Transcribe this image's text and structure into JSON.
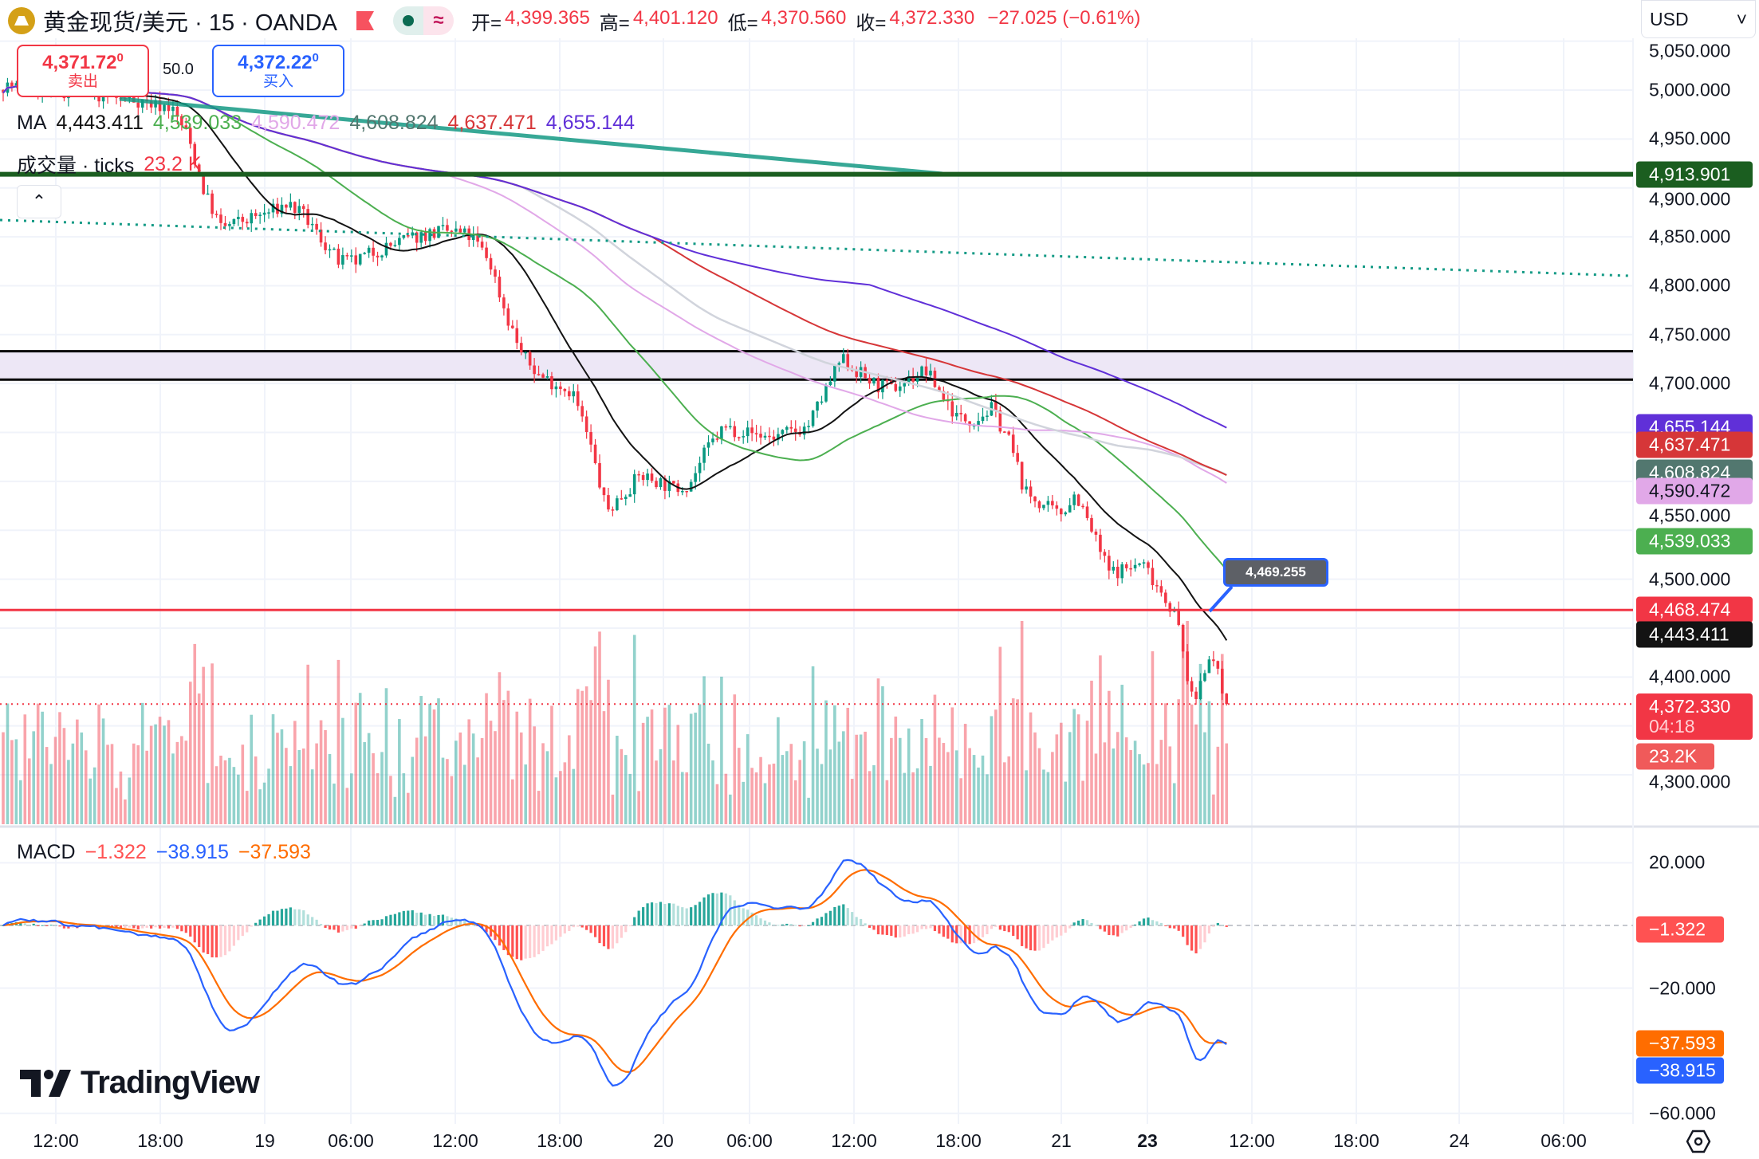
{
  "header": {
    "title": "黄金现货/美元 · 15 · OANDA",
    "open_label": "开=",
    "open": "4,399.365",
    "high_label": "高=",
    "high": "4,401.120",
    "low_label": "低=",
    "low": "4,370.560",
    "close_label": "收=",
    "close": "4,372.330",
    "change": "−27.025 (−0.61%)",
    "currency": "USD",
    "currency_caret": "˅"
  },
  "trade": {
    "sell_price": "4,371.72",
    "sell_sup": "0",
    "sell_label": "卖出",
    "spread": "50.0",
    "buy_price": "4,372.22",
    "buy_sup": "0",
    "buy_label": "买入"
  },
  "legends": {
    "ma_label": "MA",
    "ma_values": [
      "4,443.411",
      "4,539.033",
      "4,590.472",
      "4,608.824",
      "4,637.471",
      "4,655.144"
    ],
    "volume_label": "成交量 · ticks",
    "volume_value": "23.2 K",
    "collapse_glyph": "⌃",
    "macd_label": "MACD",
    "macd_values": [
      "−1.322",
      "−38.915",
      "−37.593"
    ]
  },
  "price_axis": {
    "ticks": [
      "5,050.000",
      "5,000.000",
      "4,950.000",
      "4,900.000",
      "4,850.000",
      "4,800.000",
      "4,750.000",
      "4,700.000",
      "4,550.000",
      "4,500.000",
      "4,400.000",
      "4,300.000"
    ],
    "labels": [
      {
        "value": "4,913.901",
        "color": "#1b5e20",
        "text_color": "#ffffff"
      },
      {
        "value": "4,655.144",
        "color": "#6030d8",
        "text_color": "#ffffff"
      },
      {
        "value": "4,637.471",
        "color": "#d63638",
        "text_color": "#ffffff"
      },
      {
        "value": "4,608.824",
        "color": "#52776f",
        "text_color": "#ffffff"
      },
      {
        "value": "4,590.472",
        "color": "#e1a8e8",
        "text_color": "#131722"
      },
      {
        "value": "4,539.033",
        "color": "#4caf50",
        "text_color": "#ffffff"
      },
      {
        "value": "4,468.474",
        "color": "#f23645",
        "text_color": "#ffffff"
      },
      {
        "value": "4,443.411",
        "color": "#131313",
        "text_color": "#ffffff"
      }
    ],
    "last_price": "4,372.330",
    "countdown": "04:18",
    "volume_label": "23.2K"
  },
  "macd_axis": {
    "ticks": [
      "20.000",
      "−20.000",
      "−60.000"
    ],
    "labels": [
      {
        "value": "−1.322",
        "color": "#ff5252"
      },
      {
        "value": "−37.593",
        "color": "#ff6d00"
      },
      {
        "value": "−38.915",
        "color": "#2962ff"
      }
    ]
  },
  "time_axis": {
    "ticks": [
      "12:00",
      "18:00",
      "19",
      "06:00",
      "12:00",
      "18:00",
      "20",
      "06:00",
      "12:00",
      "18:00",
      "21",
      "23",
      "12:00",
      "18:00",
      "24",
      "06:00"
    ]
  },
  "bubble": "4,469.255",
  "brand": "TradingView",
  "chart_data": {
    "type": "candlestick",
    "title": "黄金现货/美元 · 15 · OANDA",
    "ylim": [
      4270,
      5060
    ],
    "close_path": [
      5005,
      5003,
      5001,
      4999,
      4998,
      4996,
      4994,
      4991,
      4990,
      4985,
      4983,
      4954,
      4896,
      4859,
      4865,
      4870,
      4876,
      4884,
      4870,
      4847,
      4825,
      4824,
      4834,
      4840,
      4847,
      4852,
      4855,
      4855,
      4849,
      4826,
      4771,
      4728,
      4708,
      4700,
      4691,
      4639,
      4569,
      4587,
      4606,
      4601,
      4592,
      4599,
      4633,
      4655,
      4652,
      4648,
      4645,
      4650,
      4656,
      4690,
      4725,
      4712,
      4699,
      4694,
      4704,
      4714,
      4689,
      4664,
      4664,
      4674,
      4643,
      4588,
      4576,
      4565,
      4588,
      4547,
      4507,
      4511,
      4516,
      4491,
      4462,
      4370,
      4427,
      4372.33
    ],
    "moving_averages": [
      {
        "value": 4443.411,
        "color": "#131313"
      },
      {
        "value": 4539.033,
        "color": "#4caf50"
      },
      {
        "value": 4590.472,
        "color": "#e1a8e8"
      },
      {
        "value": 4608.824,
        "color": "#d1d4dc"
      },
      {
        "value": 4637.471,
        "color": "#d63638"
      },
      {
        "value": 4655.144,
        "color": "#6030d8"
      }
    ],
    "horizontal_lines": [
      {
        "price": 4913.901,
        "color": "#1b5e20",
        "style": "solid"
      },
      {
        "price": 4468.474,
        "color": "#f23645",
        "style": "solid"
      },
      {
        "price": 4372.33,
        "color": "#f23645",
        "style": "dotted"
      }
    ],
    "zone": {
      "from": 4704,
      "to": 4733,
      "color": "#ede7f6",
      "border": "#000000"
    },
    "macd": {
      "macd": -38.915,
      "signal": -37.593,
      "histogram": -1.322,
      "ylim": [
        -62,
        30
      ]
    },
    "colors": {
      "up": "#089981",
      "down": "#f23645",
      "macd": "#2962ff",
      "signal": "#ff6d00"
    }
  }
}
